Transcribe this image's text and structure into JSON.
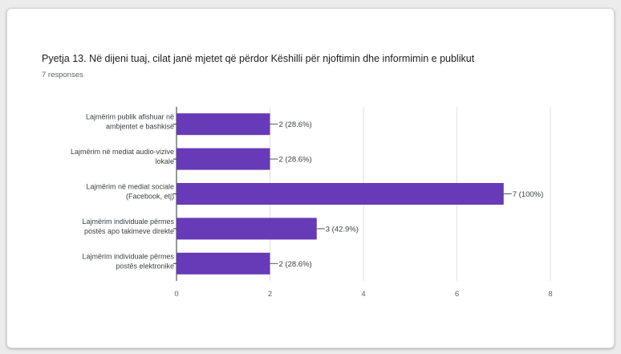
{
  "question": {
    "title": "Pyetja 13. Në dijeni tuaj, cilat janë mjetet që përdor Këshilli për njoftimin dhe informimin e publikut",
    "responses": "7 responses"
  },
  "colors": {
    "bar": "#673ab7",
    "axis": "#5f6368",
    "grid": "#e0e0e0"
  },
  "chart_data": {
    "type": "bar",
    "orientation": "horizontal",
    "categories": [
      [
        "Lajmërim publik afishuar në",
        "ambjentet e bashkisë"
      ],
      [
        "Lajmërim në mediat audio-vizive",
        "lokale"
      ],
      [
        "Lajmërim në mediat sociale",
        "(Facebook, etj)"
      ],
      [
        "Lajmërim individuale përmes",
        "postës apo takimeve direkte"
      ],
      [
        "Lajmërim individuale përmes",
        "postës elektronike"
      ]
    ],
    "values": [
      2,
      2,
      7,
      3,
      2
    ],
    "data_labels": [
      "2 (28.6%)",
      "2 (28.6%)",
      "7 (100%)",
      "3 (42.9%)",
      "2 (28.6%)"
    ],
    "xlim": [
      0,
      8
    ],
    "xticks": [
      "0",
      "2",
      "4",
      "6",
      "8"
    ],
    "grid": true,
    "legend": false
  }
}
